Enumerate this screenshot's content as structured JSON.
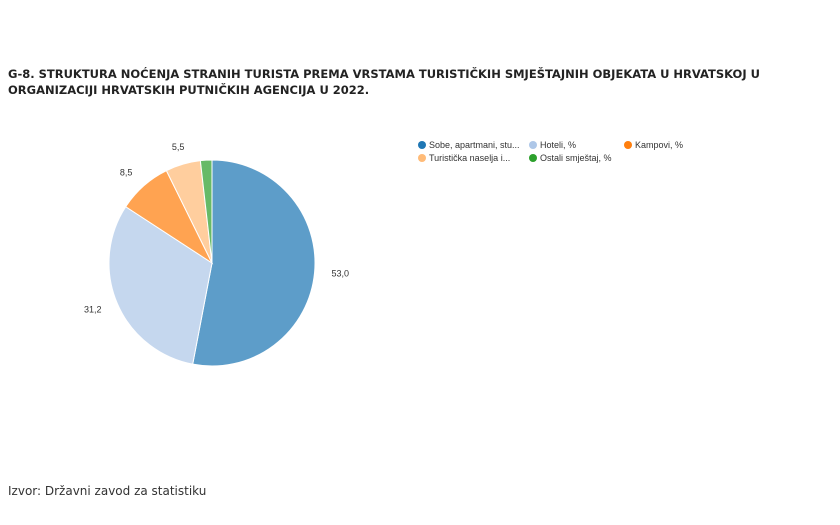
{
  "chart_data": {
    "type": "pie",
    "title": "G-8. STRUKTURA NOĆENJA STRANIH TURISTA PREMA VRSTAMA TURISTIČKIH SMJEŠTAJNIH OBJEKATA U HRVATSKOJ U ORGANIZACIJI HRVATSKIH PUTNIČKIH AGENCIJA U 2022.",
    "categories": [
      "Sobe, apartmani, stu...",
      "Hoteli, %",
      "Kampovi, %",
      "Turistička naselja i...",
      "Ostali smještaj, %"
    ],
    "values": [
      53.0,
      31.2,
      8.5,
      5.5,
      1.8
    ],
    "value_labels": [
      "53,0",
      "31,2",
      "8,5",
      "5,5",
      null
    ],
    "colors": [
      "#1f77b4",
      "#aec7e8",
      "#ff7f0e",
      "#ffbb78",
      "#2ca02c"
    ],
    "source": "Izvor: Državni zavod za statistiku"
  }
}
